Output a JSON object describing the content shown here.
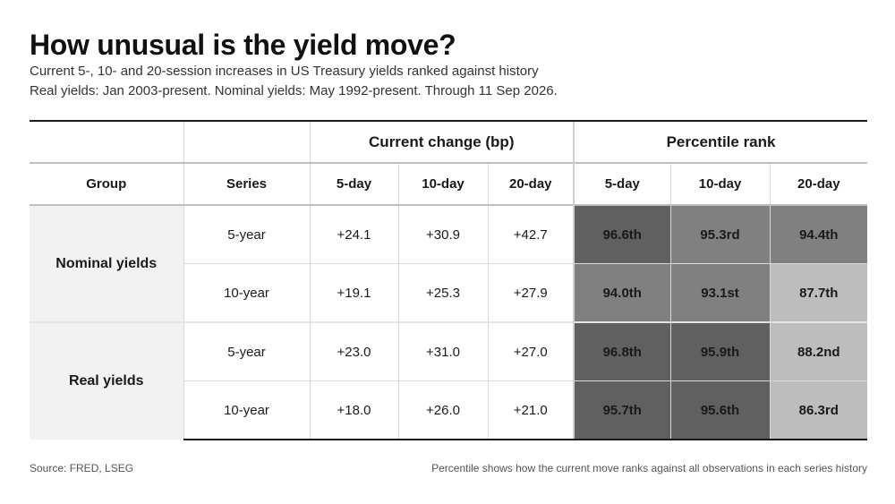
{
  "title": "How unusual is the yield move?",
  "subtitle_1": "Current 5-, 10- and 20-session increases in US Treasury yields ranked against history",
  "subtitle_2": "Real yields: Jan 2003-present. Nominal yields: May 1992-present. Through 11 Sep 2026.",
  "group_headers": {
    "change": "Current change (bp)",
    "percentile": "Percentile rank"
  },
  "column_headers": [
    "Group",
    "Series",
    "5-day",
    "10-day",
    "20-day",
    "5-day",
    "10-day",
    "20-day"
  ],
  "colors": {
    "heat_dark": "#606060",
    "heat_mid": "#808080",
    "heat_light": "#bdbdbd",
    "group_bg": "#f2f2f2"
  },
  "chart_data": {
    "type": "table",
    "title": "How unusual is the yield move?",
    "groups": [
      {
        "name": "Nominal yields",
        "rows": [
          {
            "series": "5-year",
            "change": [
              "+24.1",
              "+30.9",
              "+42.7"
            ],
            "percentile": [
              "96.6th",
              "95.3rd",
              "94.4th"
            ],
            "percentile_values": [
              96.6,
              95.3,
              94.4
            ]
          },
          {
            "series": "10-year",
            "change": [
              "+19.1",
              "+25.3",
              "+27.9"
            ],
            "percentile": [
              "94.0th",
              "93.1st",
              "87.7th"
            ],
            "percentile_values": [
              94.0,
              93.1,
              87.7
            ]
          }
        ]
      },
      {
        "name": "Real yields",
        "rows": [
          {
            "series": "5-year",
            "change": [
              "+23.0",
              "+31.0",
              "+27.0"
            ],
            "percentile": [
              "96.8th",
              "95.9th",
              "88.2nd"
            ],
            "percentile_values": [
              96.8,
              95.9,
              88.2
            ]
          },
          {
            "series": "10-year",
            "change": [
              "+18.0",
              "+26.0",
              "+21.0"
            ],
            "percentile": [
              "95.7th",
              "95.6th",
              "86.3rd"
            ],
            "percentile_values": [
              95.7,
              95.6,
              86.3
            ]
          }
        ]
      }
    ]
  },
  "footer": {
    "source": "Source: FRED, LSEG",
    "note": "Percentile shows how the current move ranks against all observations in each series history"
  }
}
